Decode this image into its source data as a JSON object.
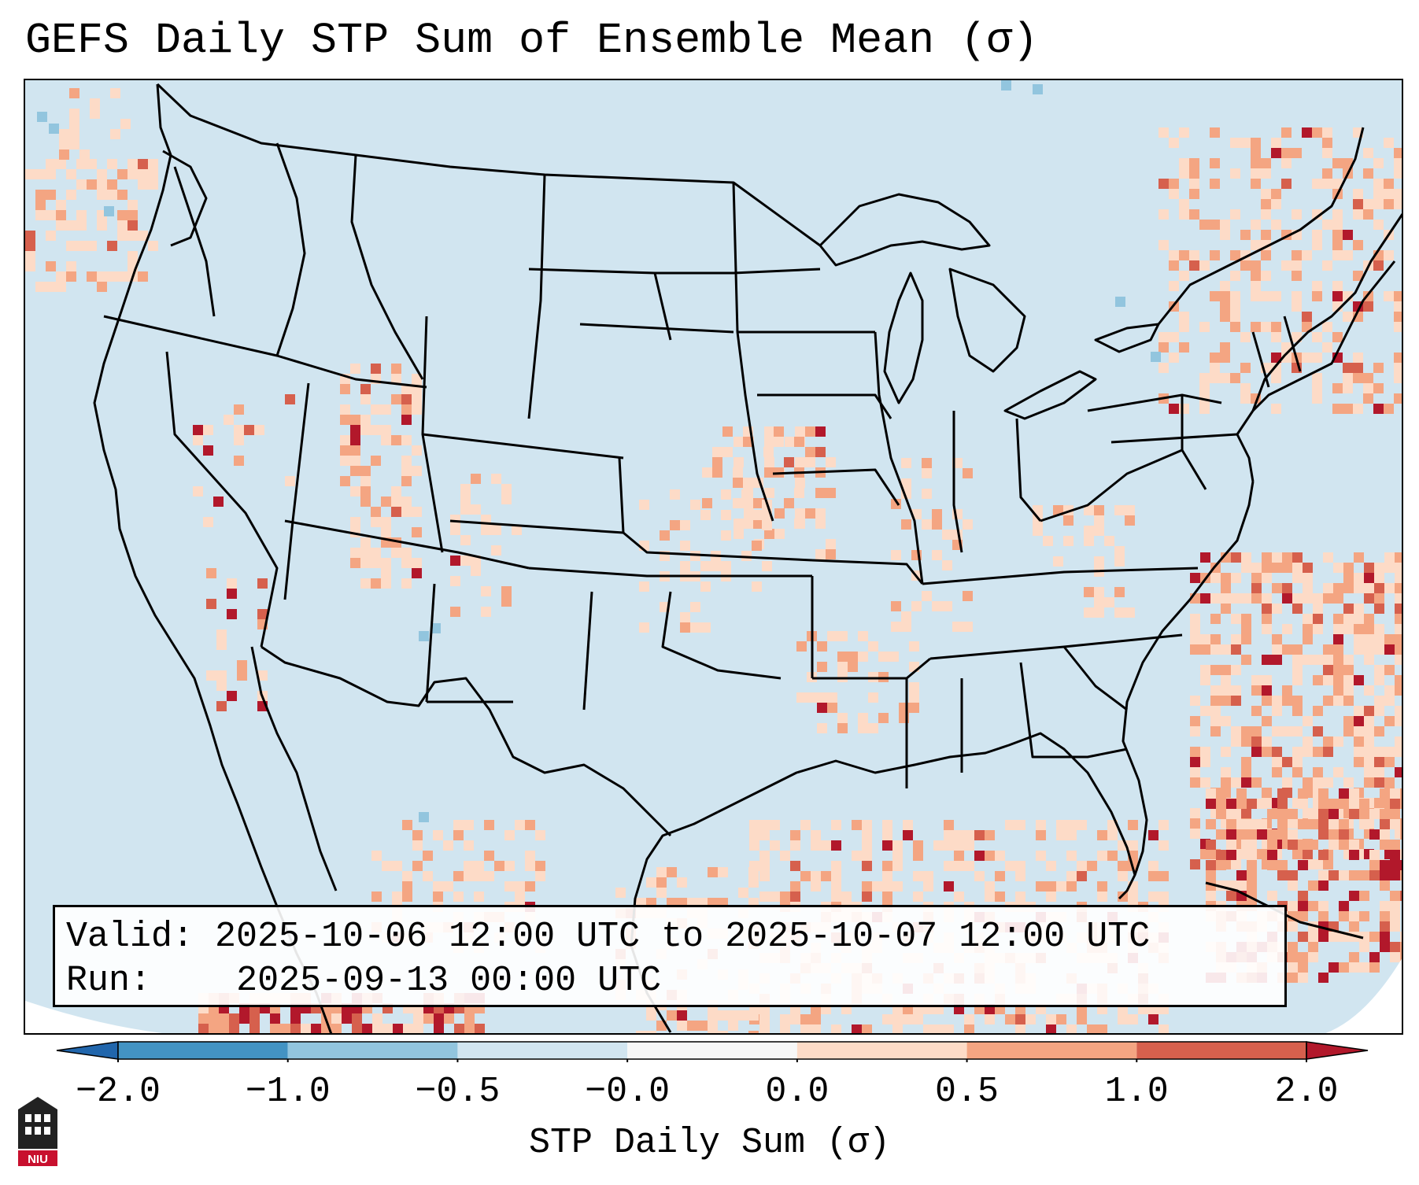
{
  "title": "GEFS Daily STP Sum of Ensemble Mean (σ)",
  "info": {
    "valid_label": "Valid:",
    "valid_value": "2025-10-06 12:00 UTC to 2025-10-07 12:00 UTC",
    "run_label": "Run:",
    "run_value": "2025-09-13 00:00 UTC"
  },
  "colorbar": {
    "label": "STP Daily Sum (σ)",
    "ticks": [
      "−2.0",
      "−1.0",
      "−0.5",
      "−0.0",
      "0.0",
      "0.5",
      "1.0",
      "2.0"
    ],
    "bins": [
      {
        "from": -2.0,
        "to": -1.0,
        "color": "#4393c3"
      },
      {
        "from": -1.0,
        "to": -0.5,
        "color": "#92c5de"
      },
      {
        "from": -0.5,
        "to": -0.0,
        "color": "#d1e5f0"
      },
      {
        "from": -0.0,
        "to": 0.0,
        "color": "#f7f7f7"
      },
      {
        "from": 0.0,
        "to": 0.5,
        "color": "#fddbc7"
      },
      {
        "from": 0.5,
        "to": 1.0,
        "color": "#f4a582"
      },
      {
        "from": 1.0,
        "to": 2.0,
        "color": "#d6604d"
      }
    ],
    "under_color": "#2166ac",
    "over_color": "#b2182b"
  },
  "colors": {
    "background_field": "#d1e5f0",
    "border": "#000000"
  },
  "logo": {
    "text": "NIU",
    "color": "#c8102e"
  }
}
